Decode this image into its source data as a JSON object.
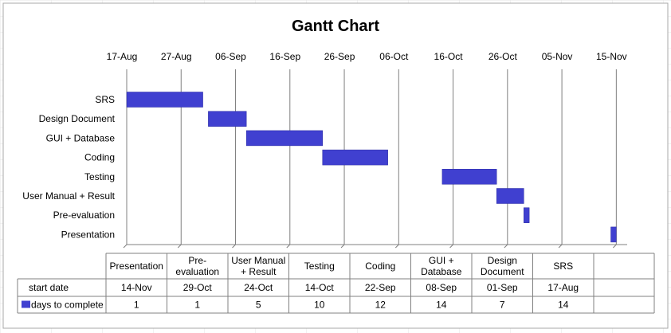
{
  "chart_data": {
    "type": "bar",
    "title": "Gantt Chart",
    "x_axis": {
      "ticks": [
        "17-Aug",
        "27-Aug",
        "06-Sep",
        "16-Sep",
        "26-Sep",
        "06-Oct",
        "16-Oct",
        "26-Oct",
        "05-Nov",
        "15-Nov"
      ],
      "range": [
        "17-Aug",
        "17-Nov"
      ],
      "position": "top",
      "grid": true
    },
    "tasks": [
      {
        "name": "SRS",
        "start": "17-Aug",
        "days": 14
      },
      {
        "name": "Design Document",
        "start": "01-Sep",
        "days": 7
      },
      {
        "name": "GUI + Database",
        "start": "08-Sep",
        "days": 14
      },
      {
        "name": "Coding",
        "start": "22-Sep",
        "days": 12
      },
      {
        "name": "Testing",
        "start": "14-Oct",
        "days": 10
      },
      {
        "name": "User Manual + Result",
        "start": "24-Oct",
        "days": 5
      },
      {
        "name": "Pre-evaluation",
        "start": "29-Oct",
        "days": 1
      },
      {
        "name": "Presentation",
        "start": "14-Nov",
        "days": 1
      }
    ],
    "series_color": "#4040d0",
    "table": {
      "columns": [
        [
          "Presentation"
        ],
        [
          "Pre-",
          "evaluation"
        ],
        [
          "User Manual",
          "+ Result"
        ],
        [
          "Testing"
        ],
        [
          "Coding"
        ],
        [
          "GUI +",
          "Database"
        ],
        [
          "Design",
          "Document"
        ],
        [
          "SRS"
        ],
        [
          ""
        ]
      ],
      "rows": [
        {
          "label": "start date",
          "legend": false,
          "values": [
            "14-Nov",
            "29-Oct",
            "24-Oct",
            "14-Oct",
            "22-Sep",
            "08-Sep",
            "01-Sep",
            "17-Aug",
            ""
          ]
        },
        {
          "label": "days to complete",
          "legend": true,
          "values": [
            "1",
            "1",
            "5",
            "10",
            "12",
            "14",
            "7",
            "14",
            ""
          ]
        }
      ]
    }
  }
}
